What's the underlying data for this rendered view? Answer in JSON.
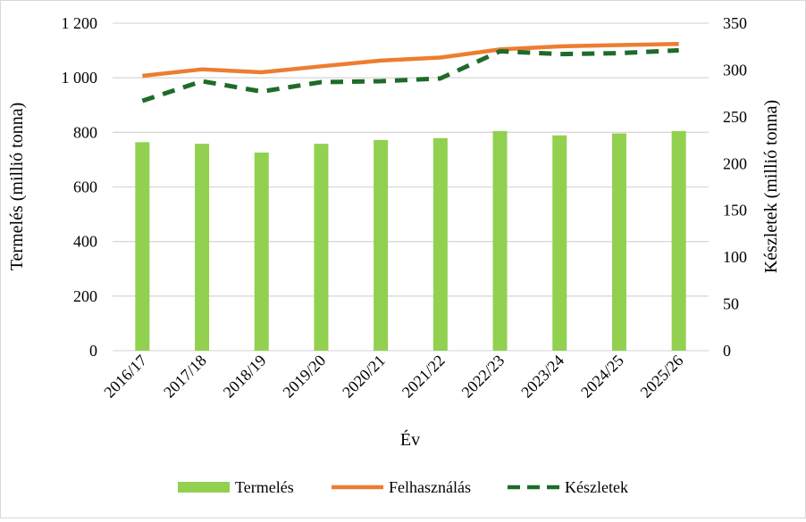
{
  "chart_data": {
    "type": "bar+line",
    "categories": [
      "2016/17",
      "2017/18",
      "2018/19",
      "2019/20",
      "2020/21",
      "2021/22",
      "2022/23",
      "2023/24",
      "2024/25",
      "2025/26"
    ],
    "series": [
      {
        "name": "Termelés",
        "type": "bar",
        "axis": "left",
        "color": "#92d050",
        "values": [
          764,
          758,
          726,
          758,
          772,
          779,
          805,
          789,
          796,
          805
        ]
      },
      {
        "name": "Felhasználás",
        "type": "line",
        "axis": "left",
        "color": "#ed7d31",
        "values": [
          1007,
          1031,
          1020,
          1042,
          1063,
          1074,
          1104,
          1115,
          1120,
          1124
        ]
      },
      {
        "name": "Készletek",
        "type": "line-dashed",
        "axis": "right",
        "color": "#1e6b2a",
        "values": [
          267,
          288,
          277,
          287,
          288,
          291,
          320,
          317,
          318,
          321
        ]
      }
    ],
    "xlabel": "Év",
    "ylabel": "Termelés (millió tonna)",
    "y2label": "Készletek (millió tonna)",
    "ylim": [
      0,
      1200
    ],
    "y2lim": [
      0,
      350
    ],
    "yticks": [
      "0",
      "200",
      "400",
      "600",
      "800",
      "1 000",
      "1 200"
    ],
    "y2ticks": [
      "0",
      "50",
      "100",
      "150",
      "200",
      "250",
      "300",
      "350"
    ],
    "grid": true,
    "legend": "bottom"
  }
}
